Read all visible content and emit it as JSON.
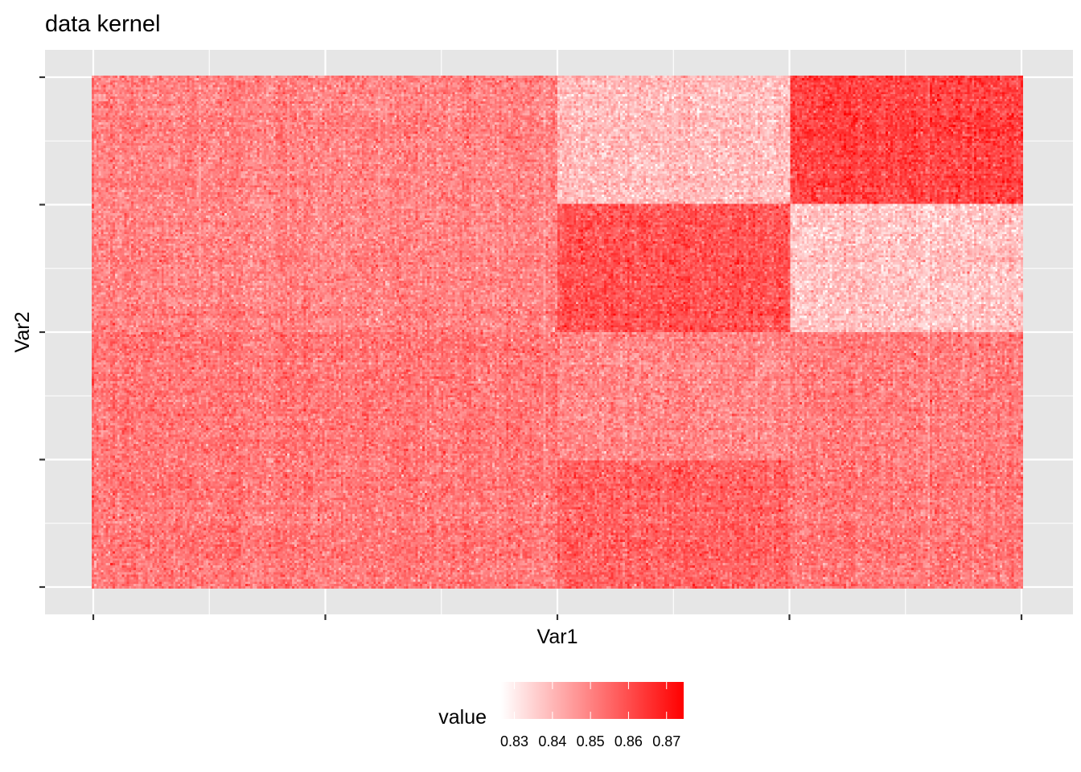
{
  "chart_data": {
    "type": "heatmap",
    "title": "data kernel",
    "xlabel": "Var1",
    "ylabel": "Var2",
    "grid": true,
    "x_tick_labels": [],
    "y_tick_labels": [],
    "value_range": [
      0.8265,
      0.8745
    ],
    "color_low": "#ffffff",
    "color_high": "#ff0000",
    "panel_color": "#e6e6e6",
    "grid_color": "#ffffff",
    "legend": {
      "title": "value",
      "position": "bottom",
      "ticks": [
        0.83,
        0.84,
        0.85,
        0.86,
        0.87
      ],
      "tick_labels": [
        "0.83",
        "0.84",
        "0.85",
        "0.86",
        "0.87"
      ]
    },
    "matrix": {
      "n_cols": 400,
      "n_rows": 220
    },
    "blocks": [
      {
        "cols": [
          0,
          200
        ],
        "rows": [
          0,
          110
        ],
        "mean": 0.852
      },
      {
        "cols": [
          0,
          200
        ],
        "rows": [
          110,
          220
        ],
        "mean": 0.85
      },
      {
        "cols": [
          200,
          300
        ],
        "rows": [
          0,
          55
        ],
        "mean": 0.856
      },
      {
        "cols": [
          200,
          300
        ],
        "rows": [
          55,
          110
        ],
        "mean": 0.849
      },
      {
        "cols": [
          200,
          300
        ],
        "rows": [
          110,
          165
        ],
        "mean": 0.859
      },
      {
        "cols": [
          200,
          300
        ],
        "rows": [
          165,
          220
        ],
        "mean": 0.839
      },
      {
        "cols": [
          300,
          400
        ],
        "rows": [
          0,
          55
        ],
        "mean": 0.852
      },
      {
        "cols": [
          300,
          400
        ],
        "rows": [
          55,
          110
        ],
        "mean": 0.851
      },
      {
        "cols": [
          300,
          400
        ],
        "rows": [
          110,
          165
        ],
        "mean": 0.838
      },
      {
        "cols": [
          300,
          400
        ],
        "rows": [
          165,
          220
        ],
        "mean": 0.862
      }
    ],
    "noise_sd": 0.0045
  }
}
